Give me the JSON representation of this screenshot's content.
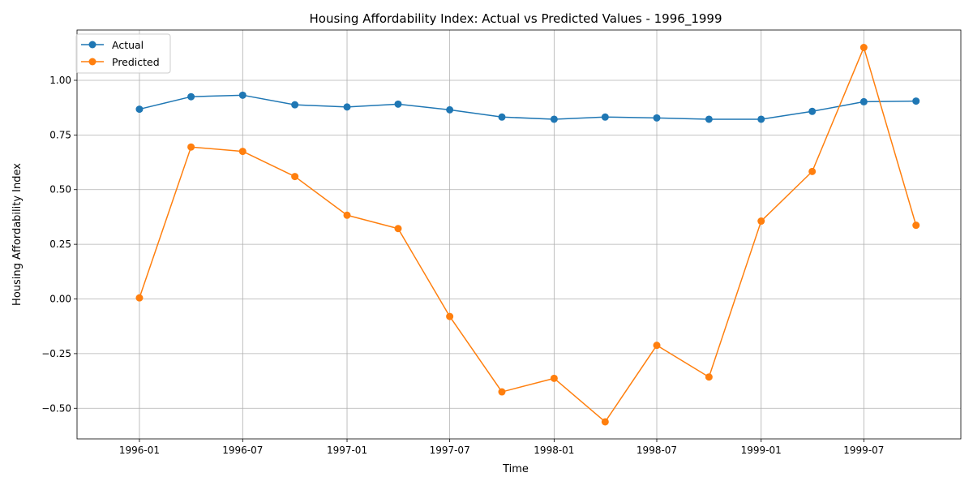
{
  "chart_data": {
    "type": "line",
    "title": "Housing Affordability Index: Actual vs Predicted Values - 1996_1999",
    "xlabel": "Time",
    "ylabel": "Housing Affordability Index",
    "x": [
      "1996-01-01",
      "1996-04-01",
      "1996-07-01",
      "1996-10-01",
      "1997-01-01",
      "1997-04-01",
      "1997-07-01",
      "1997-10-01",
      "1998-01-01",
      "1998-04-01",
      "1998-07-01",
      "1998-10-01",
      "1999-01-01",
      "1999-04-01",
      "1999-07-01",
      "1999-10-01"
    ],
    "x_ticks": [
      "1996-01",
      "1996-07",
      "1997-01",
      "1997-07",
      "1998-01",
      "1998-07",
      "1999-01",
      "1999-07"
    ],
    "xlim": [
      "1995-09-13",
      "1999-12-19"
    ],
    "y_ticks": [
      -0.5,
      -0.25,
      0.0,
      0.25,
      0.5,
      0.75,
      1.0
    ],
    "y_tick_labels": [
      "−0.50",
      "−0.25",
      "0.00",
      "0.25",
      "0.50",
      "0.75",
      "1.00"
    ],
    "ylim": [
      -0.64,
      1.23
    ],
    "grid": true,
    "legend_position": "top-left",
    "series": [
      {
        "name": "Actual",
        "color": "#1f77b4",
        "values": [
          0.868,
          0.925,
          0.932,
          0.888,
          0.878,
          0.891,
          0.865,
          0.832,
          0.822,
          0.832,
          0.828,
          0.822,
          0.822,
          0.858,
          0.902,
          0.905
        ]
      },
      {
        "name": "Predicted",
        "color": "#ff7f0e",
        "values": [
          0.005,
          0.695,
          0.675,
          0.56,
          0.383,
          0.322,
          -0.08,
          -0.425,
          -0.363,
          -0.562,
          -0.212,
          -0.357,
          0.356,
          0.583,
          1.15,
          0.337
        ]
      }
    ]
  }
}
